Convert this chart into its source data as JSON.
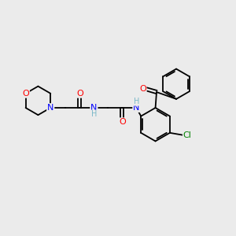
{
  "background_color": "#ebebeb",
  "bond_color": "#000000",
  "atom_colors": {
    "O": "#ff0000",
    "N": "#0000ff",
    "Cl": "#008000",
    "H": "#7ab8c8",
    "C": "#000000"
  },
  "figsize": [
    3.0,
    3.0
  ],
  "dpi": 100,
  "xlim": [
    0,
    10
  ],
  "ylim": [
    0,
    10
  ]
}
